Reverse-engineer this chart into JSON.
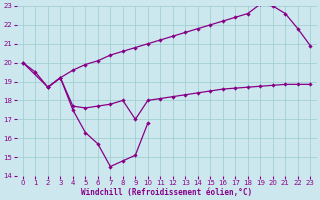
{
  "xlabel": "Windchill (Refroidissement éolien,°C)",
  "background_color": "#cce8ee",
  "line_color": "#880088",
  "grid_color": "#99cccc",
  "xlim": [
    -0.5,
    23.5
  ],
  "ylim": [
    14,
    23
  ],
  "yticks": [
    14,
    15,
    16,
    17,
    18,
    19,
    20,
    21,
    22,
    23
  ],
  "xticks": [
    0,
    1,
    2,
    3,
    4,
    5,
    6,
    7,
    8,
    9,
    10,
    11,
    12,
    13,
    14,
    15,
    16,
    17,
    18,
    19,
    20,
    21,
    22,
    23
  ],
  "line_top_x": [
    0,
    1,
    2,
    3,
    4,
    5,
    6,
    7,
    8,
    9,
    10,
    11,
    12,
    13,
    14,
    15,
    16,
    17,
    18,
    19,
    20,
    21,
    22,
    23
  ],
  "line_top_y": [
    20.0,
    19.5,
    18.7,
    19.2,
    19.6,
    19.9,
    20.1,
    20.4,
    20.6,
    20.8,
    21.0,
    21.2,
    21.4,
    21.6,
    21.8,
    22.0,
    22.2,
    22.4,
    22.6,
    23.1,
    23.0,
    22.6,
    21.8,
    20.9
  ],
  "line_mid_x": [
    0,
    2,
    3,
    4,
    5,
    6,
    7,
    8,
    9,
    10,
    11,
    12,
    13,
    14,
    15,
    16,
    17,
    18,
    19,
    20,
    21,
    22,
    23
  ],
  "line_mid_y": [
    20.0,
    18.7,
    19.2,
    17.7,
    17.6,
    17.7,
    17.8,
    18.0,
    17.0,
    18.0,
    18.1,
    18.2,
    18.3,
    18.4,
    18.5,
    18.6,
    18.65,
    18.7,
    18.75,
    18.8,
    18.85,
    18.85,
    18.85
  ],
  "line_bot_x": [
    2,
    3,
    4,
    5,
    6,
    7,
    8,
    9,
    10
  ],
  "line_bot_y": [
    18.7,
    19.2,
    17.5,
    16.3,
    15.7,
    14.5,
    14.8,
    15.1,
    16.8
  ]
}
